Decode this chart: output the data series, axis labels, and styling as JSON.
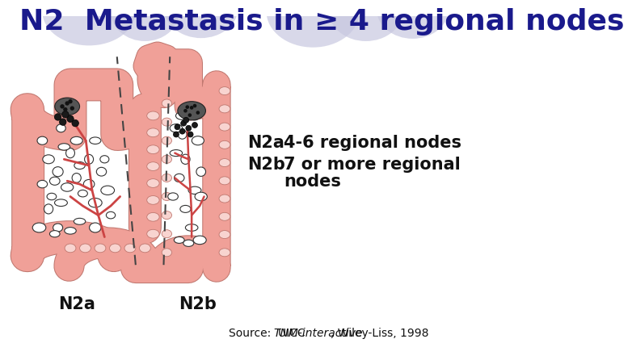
{
  "title": "N2  Metastasis in ≥ 4 regional nodes",
  "title_color": "#1a1a8c",
  "title_fontsize": 26,
  "bg_color": "#ffffff",
  "circle_color": "#c8c8e0",
  "annotation_label1": "N2a",
  "annotation_label2": "N2b",
  "annotation_desc1": "4-6 regional nodes",
  "annotation_desc2": "7 or more regional",
  "annotation_desc2b": "nodes",
  "annotation_fontsize": 13,
  "label_n2a": "N2a",
  "label_n2b": "N2b",
  "label_fontsize": 15,
  "source_text": "Source:  UICC ",
  "source_italic": "TNM-interactive",
  "source_rest": ", Wiley-Liss, 1998",
  "source_fontsize": 9,
  "colon_pink": "#f0a098",
  "colon_pink_light": "#f8d0cc",
  "colon_edge": "#c07870",
  "node_empty": "#ffffff",
  "node_filled": "#1a1a1a",
  "vessel_color": "#cc4444"
}
